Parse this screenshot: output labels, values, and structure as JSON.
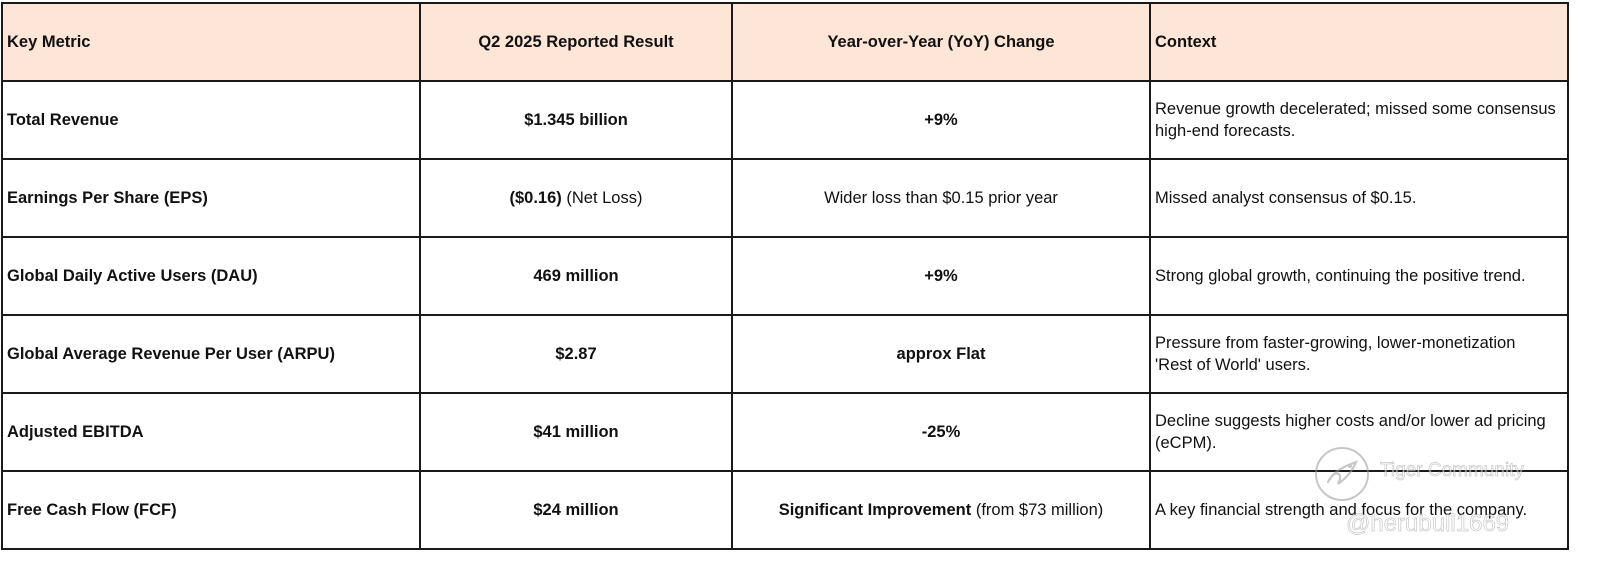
{
  "table": {
    "headers": [
      "Key Metric",
      "Q2 2025 Reported Result",
      "Year-over-Year (YoY) Change",
      "Context"
    ],
    "rows": [
      {
        "metric": "Total Revenue",
        "result_bold": "$1.345 billion",
        "result_note": "",
        "change_bold": "+9%",
        "change_note": "",
        "context": "Revenue growth decelerated; missed some consensus high-end forecasts."
      },
      {
        "metric": "Earnings Per Share (EPS)",
        "result_bold": "($0.16)",
        "result_note": "(Net Loss)",
        "change_bold": "",
        "change_note": "Wider loss than $0.15 prior year",
        "context": "Missed analyst consensus of $0.15."
      },
      {
        "metric": "Global Daily Active Users (DAU)",
        "result_bold": "469 million",
        "result_note": "",
        "change_bold": "+9%",
        "change_note": "",
        "context": "Strong global growth, continuing the positive trend."
      },
      {
        "metric": "Global Average Revenue Per User (ARPU)",
        "result_bold": "$2.87",
        "result_note": "",
        "change_bold": "approx Flat",
        "change_note": "",
        "context": "Pressure from faster-growing, lower-monetization 'Rest of World' users."
      },
      {
        "metric": "Adjusted EBITDA",
        "result_bold": "$41 million",
        "result_note": "",
        "change_bold": "-25%",
        "change_note": "",
        "context": "Decline suggests higher costs and/or lower ad pricing (eCPM)."
      },
      {
        "metric": "Free Cash Flow (FCF)",
        "result_bold": "$24 million",
        "result_note": "",
        "change_bold": "Significant Improvement",
        "change_note": "(from $73 million)",
        "context": "A key financial strength and focus for the company."
      }
    ]
  },
  "watermark": {
    "brand": "Tiger Community",
    "user": "@herubull1669"
  },
  "colors": {
    "header_bg": "#fde5d8",
    "border": "#1a1a1a",
    "text": "#111111"
  }
}
